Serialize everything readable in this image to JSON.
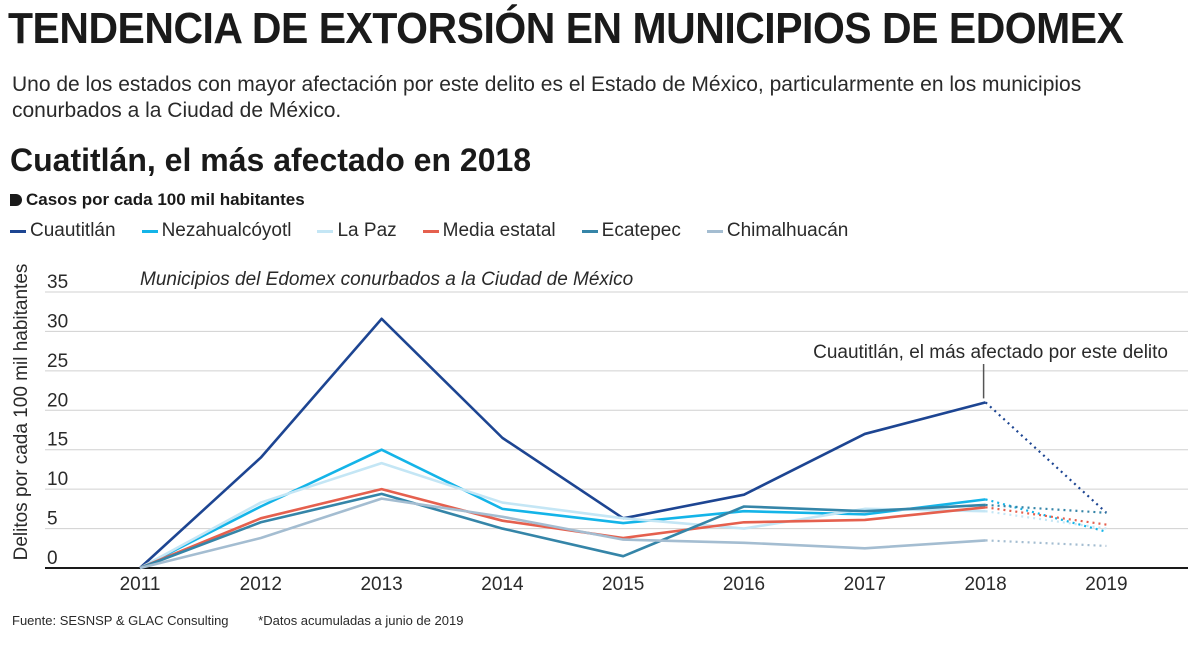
{
  "header": {
    "title": "TENDENCIA DE EXTORSIÓN EN MUNICIPIOS DE EDOMEX",
    "subtitle": "Uno de los estados con mayor afectación por este delito es el Estado de México, particularmente en los municipios conurbados a la Ciudad de México.",
    "heading": "Cuatitlán, el más afectado en 2018",
    "unit_label": "Casos por cada 100 mil habitantes"
  },
  "footer": {
    "source": "Fuente: SESNSP & GLAC Consulting",
    "note": "*Datos acumuladas a junio de 2019"
  },
  "chart_data": {
    "type": "line",
    "title": "Municipios del Edomex conurbados a la Ciudad de México",
    "xlabel": "",
    "ylabel": "Delitos por cada 100 mil habitantes",
    "categories": [
      "2011",
      "2012",
      "2013",
      "2014",
      "2015",
      "2016",
      "2017",
      "2018",
      "2019"
    ],
    "yticks": [
      0,
      5,
      10,
      15,
      20,
      25,
      30,
      35
    ],
    "ylim": [
      0,
      35
    ],
    "grid": true,
    "note": "2018–2019 segment drawn dotted (partial-year data)",
    "annotation": {
      "text": "Cuautitlán, el más afectado por este delito",
      "series": "Cuautitlán",
      "category": "2018"
    },
    "series": [
      {
        "name": "Cuautitlán",
        "color": "#1d4592",
        "values": [
          0,
          14,
          31.6,
          16.5,
          6.3,
          9.3,
          17,
          21,
          7
        ]
      },
      {
        "name": "Nezahualcóyotl",
        "color": "#14b4e8",
        "values": [
          0,
          7.8,
          15,
          7.5,
          5.7,
          7.2,
          6.8,
          8.7,
          4.6
        ]
      },
      {
        "name": "La Paz",
        "color": "#c4e6f5",
        "values": [
          0,
          8.3,
          13.3,
          8.3,
          6.3,
          5,
          7.5,
          7.2,
          5
        ]
      },
      {
        "name": "Media estatal",
        "color": "#e5604e",
        "values": [
          0,
          6.3,
          10,
          6,
          3.8,
          5.8,
          6.1,
          7.7,
          5.5
        ]
      },
      {
        "name": "Ecatepec",
        "color": "#3585a8",
        "values": [
          0,
          5.8,
          9.4,
          5,
          1.5,
          7.8,
          7.2,
          8,
          7
        ]
      },
      {
        "name": "Chimalhuacán",
        "color": "#a4bdd1",
        "values": [
          0,
          3.8,
          8.8,
          6.5,
          3.6,
          3.2,
          2.5,
          3.5,
          2.8
        ]
      }
    ]
  }
}
